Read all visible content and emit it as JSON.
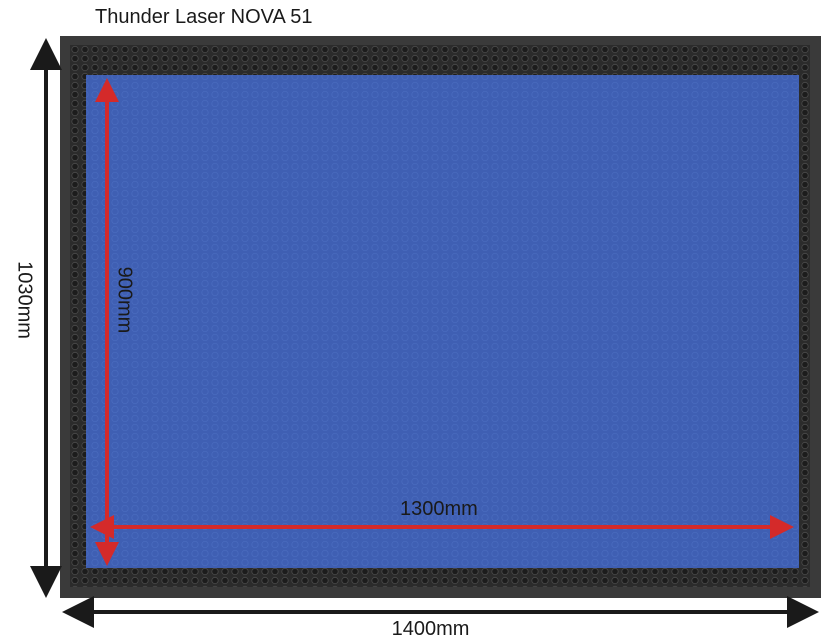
{
  "title": "Thunder Laser NOVA 51",
  "dimensions": {
    "total_width": "1400mm",
    "total_height": "1030mm",
    "work_width": "1300mm",
    "work_height": "900mm"
  },
  "colors": {
    "frame": "#3a3a3a",
    "honeycomb": "#262626",
    "work_area": "#3f5fb3",
    "work_arrow": "#d42a2a",
    "dimension_arrow": "#1a1a1a"
  }
}
